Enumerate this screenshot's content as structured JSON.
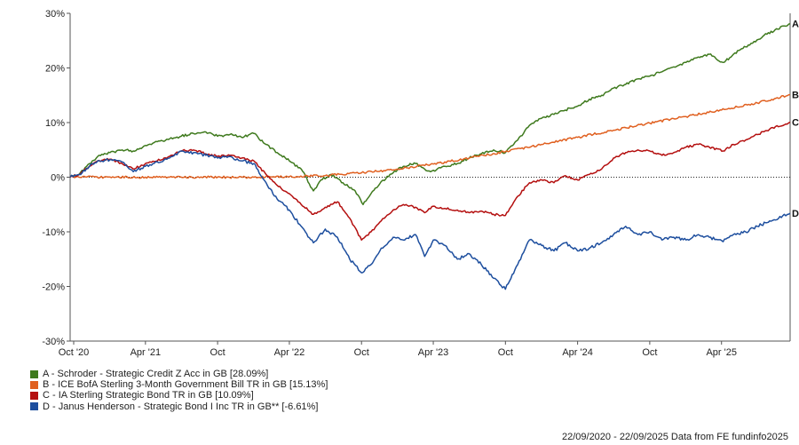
{
  "chart_data": {
    "type": "line",
    "footer": "22/09/2020 - 22/09/2025 Data from FE fundinfo2025",
    "x_ticks": [
      "Oct '20",
      "Apr '21",
      "Oct",
      "Apr '22",
      "Oct",
      "Apr '23",
      "Oct",
      "Apr '24",
      "Oct",
      "Apr '25"
    ],
    "x_tick_dates": [
      "2020-10-01",
      "2021-04-01",
      "2021-10-01",
      "2022-04-01",
      "2022-10-01",
      "2023-04-01",
      "2023-10-01",
      "2024-04-01",
      "2024-10-01",
      "2025-04-01"
    ],
    "x_range": [
      "2020-09-22",
      "2025-09-22"
    ],
    "y_ticks": [
      "30%",
      "20%",
      "10%",
      "0%",
      "-10%",
      "-20%",
      "-30%"
    ],
    "y_tick_values": [
      30,
      20,
      10,
      0,
      -10,
      -20,
      -30
    ],
    "ylim": [
      -30,
      30
    ],
    "zero_line": "dotted",
    "series": [
      {
        "letter": "A",
        "name": "A - Schroder - Strategic Credit Z Acc in GB [28.09%]",
        "color": "#3f7a1e",
        "points": [
          [
            "2020-09-22",
            0
          ],
          [
            "2020-10-15",
            0.5
          ],
          [
            "2020-11-10",
            2.5
          ],
          [
            "2020-12-01",
            3.8
          ],
          [
            "2021-01-01",
            4.5
          ],
          [
            "2021-02-01",
            5.0
          ],
          [
            "2021-03-01",
            4.8
          ],
          [
            "2021-04-01",
            5.8
          ],
          [
            "2021-05-01",
            6.5
          ],
          [
            "2021-06-01",
            7.0
          ],
          [
            "2021-07-01",
            7.5
          ],
          [
            "2021-08-01",
            8.0
          ],
          [
            "2021-09-01",
            8.3
          ],
          [
            "2021-10-01",
            7.5
          ],
          [
            "2021-11-01",
            7.8
          ],
          [
            "2021-12-01",
            7.3
          ],
          [
            "2022-01-01",
            8.0
          ],
          [
            "2022-02-01",
            6.0
          ],
          [
            "2022-03-01",
            4.5
          ],
          [
            "2022-04-01",
            3.0
          ],
          [
            "2022-05-01",
            1.5
          ],
          [
            "2022-06-01",
            -2.5
          ],
          [
            "2022-06-20",
            -0.5
          ],
          [
            "2022-07-15",
            0.5
          ],
          [
            "2022-08-15",
            -1.0
          ],
          [
            "2022-09-15",
            -2.5
          ],
          [
            "2022-10-05",
            -5.0
          ],
          [
            "2022-10-25",
            -3.0
          ],
          [
            "2022-11-20",
            -0.8
          ],
          [
            "2022-12-20",
            0.8
          ],
          [
            "2023-01-15",
            2.0
          ],
          [
            "2023-02-15",
            2.5
          ],
          [
            "2023-03-10",
            1.5
          ],
          [
            "2023-03-25",
            1.0
          ],
          [
            "2023-05-01",
            2.0
          ],
          [
            "2023-06-01",
            2.5
          ],
          [
            "2023-07-01",
            3.5
          ],
          [
            "2023-08-01",
            4.3
          ],
          [
            "2023-09-01",
            5.0
          ],
          [
            "2023-10-01",
            4.5
          ],
          [
            "2023-11-01",
            6.8
          ],
          [
            "2023-12-01",
            9.5
          ],
          [
            "2024-01-01",
            10.8
          ],
          [
            "2024-02-01",
            11.5
          ],
          [
            "2024-03-01",
            12.3
          ],
          [
            "2024-04-01",
            13.0
          ],
          [
            "2024-05-01",
            14.3
          ],
          [
            "2024-06-01",
            15.0
          ],
          [
            "2024-07-01",
            16.3
          ],
          [
            "2024-08-01",
            17.0
          ],
          [
            "2024-09-01",
            18.0
          ],
          [
            "2024-10-01",
            18.5
          ],
          [
            "2024-11-01",
            19.3
          ],
          [
            "2024-12-01",
            20.2
          ],
          [
            "2025-01-01",
            21.0
          ],
          [
            "2025-02-01",
            22.0
          ],
          [
            "2025-03-01",
            22.5
          ],
          [
            "2025-04-05",
            21.0
          ],
          [
            "2025-04-25",
            22.0
          ],
          [
            "2025-05-15",
            23.2
          ],
          [
            "2025-06-15",
            24.5
          ],
          [
            "2025-07-15",
            25.8
          ],
          [
            "2025-08-15",
            27.0
          ],
          [
            "2025-09-22",
            28.09
          ]
        ]
      },
      {
        "letter": "B",
        "name": "B - ICE BofA Sterling 3-Month Government Bill TR in GB [15.13%]",
        "color": "#e06020",
        "points": [
          [
            "2020-09-22",
            0
          ],
          [
            "2021-06-01",
            0
          ],
          [
            "2022-01-01",
            0
          ],
          [
            "2022-04-01",
            0.1
          ],
          [
            "2022-07-01",
            0.3
          ],
          [
            "2022-10-01",
            0.8
          ],
          [
            "2023-01-01",
            1.5
          ],
          [
            "2023-04-01",
            2.4
          ],
          [
            "2023-07-01",
            3.5
          ],
          [
            "2023-10-01",
            4.7
          ],
          [
            "2024-01-01",
            6.0
          ],
          [
            "2024-04-01",
            7.3
          ],
          [
            "2024-07-01",
            8.6
          ],
          [
            "2024-10-01",
            9.9
          ],
          [
            "2025-01-01",
            11.1
          ],
          [
            "2025-04-01",
            12.3
          ],
          [
            "2025-07-01",
            13.6
          ],
          [
            "2025-09-22",
            15.13
          ]
        ]
      },
      {
        "letter": "C",
        "name": "C - IA Sterling Strategic Bond TR in GB [10.09%]",
        "color": "#b40f0f",
        "points": [
          [
            "2020-09-22",
            0
          ],
          [
            "2020-10-15",
            0.5
          ],
          [
            "2020-11-10",
            2.0
          ],
          [
            "2020-12-01",
            3.0
          ],
          [
            "2021-01-01",
            3.3
          ],
          [
            "2021-02-01",
            2.5
          ],
          [
            "2021-03-01",
            1.5
          ],
          [
            "2021-04-01",
            2.5
          ],
          [
            "2021-05-01",
            3.0
          ],
          [
            "2021-06-01",
            3.8
          ],
          [
            "2021-07-01",
            4.8
          ],
          [
            "2021-08-01",
            5.0
          ],
          [
            "2021-09-01",
            4.3
          ],
          [
            "2021-10-01",
            3.8
          ],
          [
            "2021-11-01",
            4.0
          ],
          [
            "2021-12-01",
            3.5
          ],
          [
            "2022-01-01",
            3.0
          ],
          [
            "2022-02-01",
            0.5
          ],
          [
            "2022-03-01",
            -1.5
          ],
          [
            "2022-04-01",
            -3.0
          ],
          [
            "2022-05-01",
            -5.0
          ],
          [
            "2022-06-01",
            -6.8
          ],
          [
            "2022-07-01",
            -5.5
          ],
          [
            "2022-08-01",
            -4.5
          ],
          [
            "2022-09-01",
            -7.5
          ],
          [
            "2022-10-01",
            -11.5
          ],
          [
            "2022-10-25",
            -10.0
          ],
          [
            "2022-11-20",
            -8.0
          ],
          [
            "2022-12-20",
            -6.0
          ],
          [
            "2023-01-15",
            -5.0
          ],
          [
            "2023-02-15",
            -5.5
          ],
          [
            "2023-03-10",
            -6.5
          ],
          [
            "2023-04-01",
            -5.3
          ],
          [
            "2023-05-01",
            -5.7
          ],
          [
            "2023-06-01",
            -6.0
          ],
          [
            "2023-07-01",
            -6.5
          ],
          [
            "2023-08-01",
            -6.2
          ],
          [
            "2023-09-01",
            -6.8
          ],
          [
            "2023-10-01",
            -7.0
          ],
          [
            "2023-11-01",
            -3.5
          ],
          [
            "2023-12-01",
            -1.0
          ],
          [
            "2024-01-01",
            -0.5
          ],
          [
            "2024-02-01",
            -1.0
          ],
          [
            "2024-03-01",
            0.3
          ],
          [
            "2024-04-01",
            -0.5
          ],
          [
            "2024-05-01",
            0.5
          ],
          [
            "2024-06-01",
            1.5
          ],
          [
            "2024-07-01",
            3.5
          ],
          [
            "2024-08-01",
            4.5
          ],
          [
            "2024-09-01",
            5.0
          ],
          [
            "2024-10-01",
            4.8
          ],
          [
            "2024-11-01",
            4.0
          ],
          [
            "2024-12-01",
            4.5
          ],
          [
            "2025-01-01",
            5.5
          ],
          [
            "2025-02-01",
            6.0
          ],
          [
            "2025-03-01",
            5.5
          ],
          [
            "2025-04-05",
            4.8
          ],
          [
            "2025-05-01",
            6.0
          ],
          [
            "2025-06-01",
            6.8
          ],
          [
            "2025-07-01",
            7.8
          ],
          [
            "2025-08-01",
            8.8
          ],
          [
            "2025-09-22",
            10.09
          ]
        ]
      },
      {
        "letter": "D",
        "name": "D - Janus Henderson - Strategic Bond I Inc TR in GB** [-6.61%]",
        "color": "#1d4e9e",
        "points": [
          [
            "2020-09-22",
            0
          ],
          [
            "2020-10-15",
            0.5
          ],
          [
            "2020-11-10",
            2.0
          ],
          [
            "2020-12-01",
            3.0
          ],
          [
            "2021-01-01",
            3.2
          ],
          [
            "2021-02-01",
            2.8
          ],
          [
            "2021-03-01",
            1.0
          ],
          [
            "2021-04-01",
            2.0
          ],
          [
            "2021-05-01",
            2.8
          ],
          [
            "2021-06-01",
            3.5
          ],
          [
            "2021-07-01",
            4.8
          ],
          [
            "2021-08-01",
            4.5
          ],
          [
            "2021-09-01",
            4.0
          ],
          [
            "2021-10-01",
            3.5
          ],
          [
            "2021-11-01",
            3.8
          ],
          [
            "2021-12-01",
            3.0
          ],
          [
            "2022-01-01",
            2.5
          ],
          [
            "2022-02-01",
            -1.0
          ],
          [
            "2022-03-01",
            -4.0
          ],
          [
            "2022-04-01",
            -6.0
          ],
          [
            "2022-05-01",
            -9.0
          ],
          [
            "2022-06-01",
            -12.0
          ],
          [
            "2022-07-01",
            -9.5
          ],
          [
            "2022-08-01",
            -11.0
          ],
          [
            "2022-09-01",
            -15.0
          ],
          [
            "2022-10-01",
            -17.5
          ],
          [
            "2022-10-25",
            -16.0
          ],
          [
            "2022-11-20",
            -13.0
          ],
          [
            "2022-12-20",
            -11.0
          ],
          [
            "2023-01-15",
            -11.5
          ],
          [
            "2023-02-15",
            -10.5
          ],
          [
            "2023-03-10",
            -14.5
          ],
          [
            "2023-04-01",
            -11.5
          ],
          [
            "2023-05-01",
            -12.5
          ],
          [
            "2023-06-01",
            -15.0
          ],
          [
            "2023-07-01",
            -14.0
          ],
          [
            "2023-08-01",
            -16.0
          ],
          [
            "2023-09-01",
            -18.5
          ],
          [
            "2023-10-01",
            -20.5
          ],
          [
            "2023-11-01",
            -16.0
          ],
          [
            "2023-12-01",
            -11.5
          ],
          [
            "2024-01-01",
            -12.5
          ],
          [
            "2024-02-01",
            -13.5
          ],
          [
            "2024-03-01",
            -12.0
          ],
          [
            "2024-04-01",
            -13.5
          ],
          [
            "2024-05-01",
            -13.0
          ],
          [
            "2024-06-01",
            -12.0
          ],
          [
            "2024-07-01",
            -10.5
          ],
          [
            "2024-08-01",
            -9.0
          ],
          [
            "2024-09-01",
            -10.5
          ],
          [
            "2024-10-01",
            -10.0
          ],
          [
            "2024-11-01",
            -11.5
          ],
          [
            "2024-12-01",
            -11.0
          ],
          [
            "2025-01-01",
            -11.5
          ],
          [
            "2025-02-01",
            -10.5
          ],
          [
            "2025-03-01",
            -11.0
          ],
          [
            "2025-04-05",
            -11.8
          ],
          [
            "2025-05-01",
            -10.5
          ],
          [
            "2025-06-01",
            -10.0
          ],
          [
            "2025-07-01",
            -9.0
          ],
          [
            "2025-08-01",
            -8.0
          ],
          [
            "2025-09-22",
            -6.61
          ]
        ]
      }
    ]
  }
}
